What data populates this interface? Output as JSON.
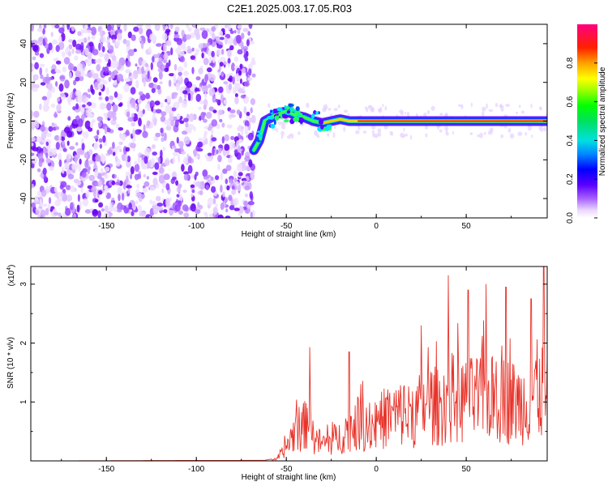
{
  "figure_title": "C2E1.2025.003.17.05.R03",
  "chart_data": [
    {
      "type": "heatmap",
      "id": "spectrum",
      "xlabel": "Height of straight line (km)",
      "ylabel": "Frequency (Hz)",
      "xlim": [
        -192,
        95
      ],
      "ylim": [
        -50,
        50
      ],
      "xticks": [
        -150,
        -100,
        -50,
        0,
        50
      ],
      "yticks": [
        -40,
        -20,
        0,
        20,
        40
      ],
      "noise_region": [
        -192,
        -68
      ],
      "signal_track": [
        {
          "x": -68,
          "y": -15
        },
        {
          "x": -65,
          "y": -10
        },
        {
          "x": -62,
          "y": 0
        },
        {
          "x": -58,
          "y": 2
        },
        {
          "x": -55,
          "y": 4
        },
        {
          "x": -50,
          "y": 5
        },
        {
          "x": -45,
          "y": 3
        },
        {
          "x": -40,
          "y": 2
        },
        {
          "x": -35,
          "y": 0
        },
        {
          "x": -30,
          "y": -1
        },
        {
          "x": -25,
          "y": 0
        },
        {
          "x": -20,
          "y": 1
        },
        {
          "x": -15,
          "y": 0
        },
        {
          "x": -10,
          "y": 0
        },
        {
          "x": 0,
          "y": 0
        },
        {
          "x": 20,
          "y": 0
        },
        {
          "x": 50,
          "y": 0
        },
        {
          "x": 70,
          "y": 0
        },
        {
          "x": 95,
          "y": 0
        }
      ],
      "colorbar": {
        "label": "Normalized spectral amplitude",
        "range": [
          0,
          1
        ],
        "ticks": [
          "0.0",
          "0.2",
          "0.4",
          "0.6",
          "0.8"
        ],
        "tick_values": [
          0,
          0.2,
          0.4,
          0.6,
          0.8
        ]
      }
    },
    {
      "type": "line",
      "id": "snr",
      "xlabel": "Height of straight line (km)",
      "ylabel": "SNR (10 * v/v)",
      "scale_note_base": "(x10",
      "scale_note_exp": "4",
      "scale_note_end": ")",
      "xlim": [
        -192,
        95
      ],
      "ylim": [
        0,
        3.3
      ],
      "xticks": [
        -150,
        -100,
        -50,
        0,
        50
      ],
      "yticks": [
        1,
        2,
        3
      ],
      "series": [
        {
          "name": "SNR",
          "color": "#e8332a",
          "envelope": [
            {
              "x": -192,
              "v": 0.0
            },
            {
              "x": -62,
              "v": 0.01
            },
            {
              "x": -55,
              "v": 0.05
            },
            {
              "x": -52,
              "v": 0.25
            },
            {
              "x": -48,
              "v": 0.6
            },
            {
              "x": -45,
              "v": 0.9
            },
            {
              "x": -40,
              "v": 1.0
            },
            {
              "x": -38,
              "v": 1.4
            },
            {
              "x": -35,
              "v": 0.7
            },
            {
              "x": -30,
              "v": 0.5
            },
            {
              "x": -25,
              "v": 0.6
            },
            {
              "x": -20,
              "v": 0.7
            },
            {
              "x": -15,
              "v": 1.0
            },
            {
              "x": -10,
              "v": 1.1
            },
            {
              "x": -5,
              "v": 1.0
            },
            {
              "x": 0,
              "v": 1.05
            },
            {
              "x": 5,
              "v": 1.3
            },
            {
              "x": 10,
              "v": 1.35
            },
            {
              "x": 15,
              "v": 1.4
            },
            {
              "x": 20,
              "v": 1.3
            },
            {
              "x": 25,
              "v": 1.55
            },
            {
              "x": 30,
              "v": 1.7
            },
            {
              "x": 35,
              "v": 1.55
            },
            {
              "x": 40,
              "v": 1.9
            },
            {
              "x": 45,
              "v": 1.8
            },
            {
              "x": 50,
              "v": 1.75
            },
            {
              "x": 55,
              "v": 1.8
            },
            {
              "x": 60,
              "v": 1.9
            },
            {
              "x": 65,
              "v": 1.8
            },
            {
              "x": 70,
              "v": 1.85
            },
            {
              "x": 75,
              "v": 1.75
            },
            {
              "x": 80,
              "v": 1.7
            },
            {
              "x": 85,
              "v": 1.8
            },
            {
              "x": 90,
              "v": 2.1
            },
            {
              "x": 95,
              "v": 1.9
            }
          ],
          "peaks": [
            {
              "x": -37,
              "v": 1.93
            },
            {
              "x": -15,
              "v": 1.85
            },
            {
              "x": 25,
              "v": 2.3
            },
            {
              "x": 40,
              "v": 3.15
            },
            {
              "x": 51,
              "v": 2.9
            },
            {
              "x": 61,
              "v": 3.0
            },
            {
              "x": 72,
              "v": 2.95
            },
            {
              "x": 86,
              "v": 2.75
            },
            {
              "x": 93,
              "v": 3.3
            }
          ]
        }
      ]
    }
  ]
}
